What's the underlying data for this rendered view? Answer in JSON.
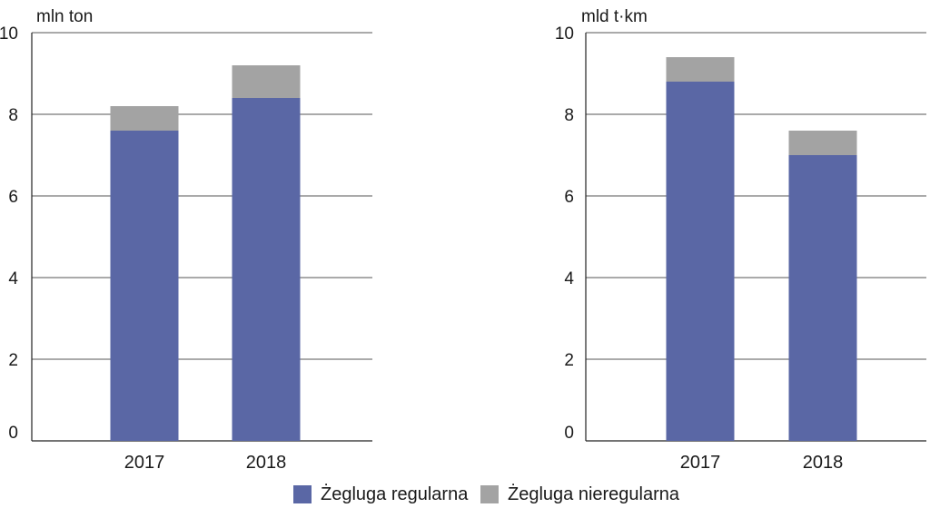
{
  "chart_data": [
    {
      "type": "bar",
      "stacked": true,
      "unit_label": "mln ton",
      "categories": [
        "2017",
        "2018"
      ],
      "series": [
        {
          "name": "Żegluga regularna",
          "values": [
            7.6,
            8.4
          ],
          "color": "#5a67a5"
        },
        {
          "name": "Żegluga nieregularna",
          "values": [
            0.6,
            0.8
          ],
          "color": "#a3a3a3"
        }
      ],
      "ylim": [
        0,
        10
      ],
      "yticks": [
        "0",
        "2",
        "4",
        "6",
        "8",
        "10"
      ],
      "grid": true
    },
    {
      "type": "bar",
      "stacked": true,
      "unit_label": "mld t·km",
      "categories": [
        "2017",
        "2018"
      ],
      "series": [
        {
          "name": "Żegluga regularna",
          "values": [
            8.8,
            7.0
          ],
          "color": "#5a67a5"
        },
        {
          "name": "Żegluga nieregularna",
          "values": [
            0.6,
            0.6
          ],
          "color": "#a3a3a3"
        }
      ],
      "ylim": [
        0,
        10
      ],
      "yticks": [
        "0",
        "2",
        "4",
        "6",
        "8",
        "10"
      ],
      "grid": true
    }
  ],
  "legend": {
    "placement": "bottom-center",
    "items": [
      {
        "label": "Żegluga regularna",
        "color": "#5a67a5"
      },
      {
        "label": "Żegluga nieregularna",
        "color": "#a3a3a3"
      }
    ]
  }
}
